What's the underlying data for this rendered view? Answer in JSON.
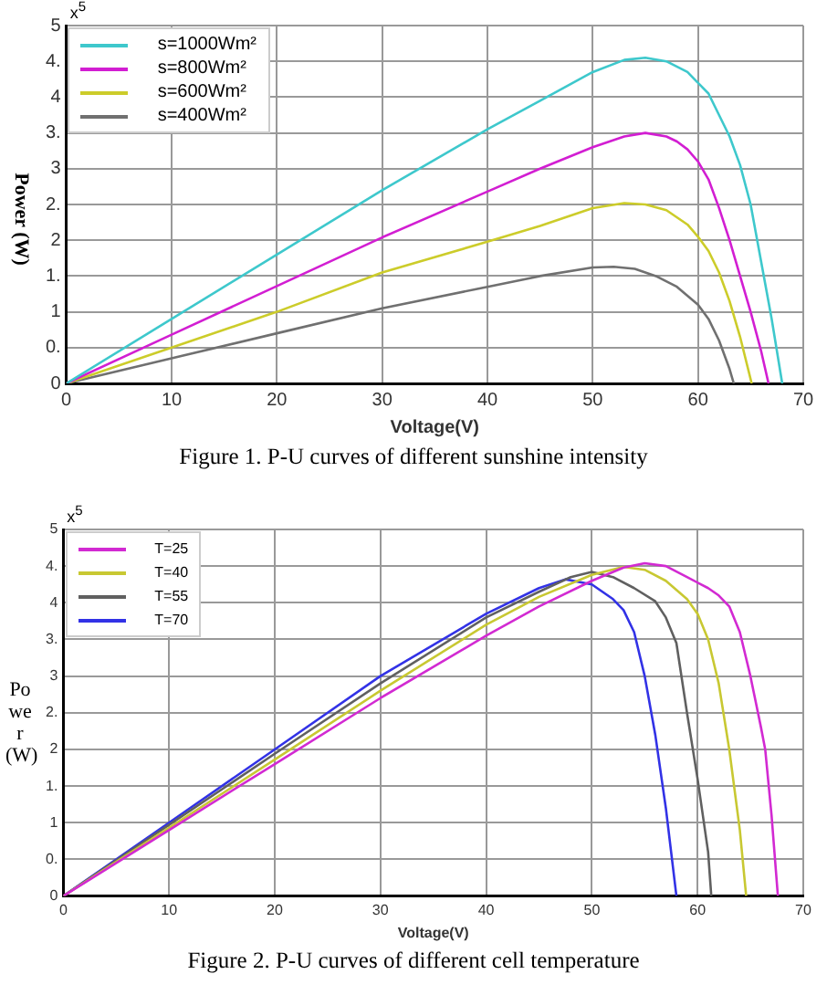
{
  "chart_data": [
    {
      "type": "line",
      "title": "Figure 1. P-U curves of different sunshine intensity",
      "xlabel": "Voltage(V)",
      "ylabel": "Power (W)",
      "annotations": [
        "x$^{5}$"
      ],
      "xlim": [
        0,
        70
      ],
      "xticks": [
        0,
        10,
        20,
        30,
        40,
        50,
        60,
        70
      ],
      "ylim": [
        0,
        5
      ],
      "yticks": [
        {
          "value": 0,
          "label": "0"
        },
        {
          "value": 0.5,
          "label": "0."
        },
        {
          "value": 1,
          "label": "1"
        },
        {
          "value": 1.5,
          "label": "1."
        },
        {
          "value": 2,
          "label": "2"
        },
        {
          "value": 2.5,
          "label": "2."
        },
        {
          "value": 3,
          "label": "3"
        },
        {
          "value": 3.5,
          "label": "3."
        },
        {
          "value": 4,
          "label": "4"
        },
        {
          "value": 4.5,
          "label": "4."
        },
        {
          "value": 5,
          "label": "5"
        }
      ],
      "grid": true,
      "legend": "top left",
      "marker": "none",
      "line_style": "solid",
      "series": [
        {
          "name": "s=1000Wm²",
          "color": "#3ec8cc",
          "x": [
            0,
            10,
            20,
            30,
            40,
            45,
            50,
            53,
            55,
            57,
            59,
            61,
            63,
            64,
            65,
            66,
            67,
            68
          ],
          "values": [
            0,
            0.9,
            1.8,
            2.7,
            3.55,
            3.95,
            4.35,
            4.52,
            4.55,
            4.5,
            4.35,
            4.05,
            3.45,
            3.05,
            2.5,
            1.7,
            0.9,
            0
          ]
        },
        {
          "name": "s=800Wm²",
          "color": "#d21ed2",
          "x": [
            0,
            10,
            20,
            30,
            40,
            45,
            50,
            53,
            55,
            57,
            58,
            59,
            60,
            61,
            62,
            63,
            64,
            65,
            66,
            66.7
          ],
          "values": [
            0,
            0.68,
            1.36,
            2.04,
            2.68,
            3.0,
            3.3,
            3.45,
            3.5,
            3.45,
            3.38,
            3.27,
            3.1,
            2.85,
            2.45,
            2.0,
            1.5,
            1.0,
            0.45,
            0
          ]
        },
        {
          "name": "s=600Wm²",
          "color": "#cccc2a",
          "x": [
            0,
            10,
            20,
            30,
            40,
            45,
            50,
            53,
            55,
            57,
            59,
            60,
            61,
            62,
            63,
            64,
            65.1
          ],
          "values": [
            0,
            0.5,
            1.0,
            1.55,
            1.98,
            2.2,
            2.45,
            2.52,
            2.5,
            2.42,
            2.22,
            2.05,
            1.85,
            1.55,
            1.15,
            0.65,
            0
          ]
        },
        {
          "name": "s=400Wm²",
          "color": "#707070",
          "x": [
            0,
            10,
            20,
            30,
            40,
            45,
            50,
            52,
            54,
            56,
            58,
            60,
            61,
            62,
            63,
            63.4
          ],
          "values": [
            0,
            0.35,
            0.7,
            1.05,
            1.35,
            1.5,
            1.62,
            1.63,
            1.6,
            1.5,
            1.35,
            1.1,
            0.9,
            0.6,
            0.2,
            0
          ]
        }
      ]
    },
    {
      "type": "line",
      "title": "Figure 2. P-U curves of different cell temperature",
      "xlabel": "Voltage(V)",
      "ylabel": "Power(W)",
      "annotations": [
        "x$^{5}$"
      ],
      "xlim": [
        0,
        70
      ],
      "xticks": [
        0,
        10,
        20,
        30,
        40,
        50,
        60,
        70
      ],
      "ylim": [
        0,
        5
      ],
      "yticks": [
        {
          "value": 0,
          "label": "0"
        },
        {
          "value": 0.5,
          "label": "0."
        },
        {
          "value": 1,
          "label": "1"
        },
        {
          "value": 1.5,
          "label": "1."
        },
        {
          "value": 2,
          "label": "2"
        },
        {
          "value": 2.5,
          "label": "2."
        },
        {
          "value": 3,
          "label": "3"
        },
        {
          "value": 3.5,
          "label": "3."
        },
        {
          "value": 4,
          "label": "4"
        },
        {
          "value": 4.5,
          "label": "4."
        },
        {
          "value": 5,
          "label": "5"
        }
      ],
      "grid": true,
      "legend": "top left",
      "marker": "none",
      "line_style": "solid",
      "series": [
        {
          "name": "T=25",
          "color": "#d22ad2",
          "x": [
            0,
            10,
            20,
            30,
            40,
            45,
            50,
            53,
            55,
            57,
            59,
            61,
            62,
            63,
            64,
            65,
            66,
            66.4,
            67,
            67.6
          ],
          "values": [
            0,
            0.9,
            1.8,
            2.7,
            3.55,
            3.95,
            4.3,
            4.48,
            4.54,
            4.5,
            4.35,
            4.2,
            4.1,
            3.95,
            3.6,
            3.0,
            2.3,
            2.0,
            1.1,
            0
          ]
        },
        {
          "name": "T=40",
          "color": "#c8c832",
          "x": [
            0,
            10,
            20,
            30,
            40,
            45,
            50,
            53,
            55,
            57,
            59,
            60,
            61,
            62,
            63,
            64,
            64.6
          ],
          "values": [
            0,
            0.93,
            1.86,
            2.8,
            3.7,
            4.08,
            4.38,
            4.49,
            4.45,
            4.3,
            4.05,
            3.85,
            3.5,
            2.9,
            2.0,
            0.9,
            0
          ]
        },
        {
          "name": "T=55",
          "color": "#606060",
          "x": [
            0,
            10,
            20,
            30,
            40,
            45,
            48,
            50,
            52,
            54,
            56,
            57,
            58,
            59,
            60,
            61,
            61.3
          ],
          "values": [
            0,
            0.97,
            1.94,
            2.9,
            3.8,
            4.15,
            4.35,
            4.42,
            4.35,
            4.2,
            4.02,
            3.8,
            3.45,
            2.5,
            1.6,
            0.6,
            0
          ]
        },
        {
          "name": "T=70",
          "color": "#3232e6",
          "x": [
            0,
            10,
            20,
            30,
            40,
            45,
            47.5,
            50,
            52,
            53,
            54,
            55,
            56,
            57,
            58
          ],
          "values": [
            0,
            1.0,
            2.0,
            3.0,
            3.85,
            4.2,
            4.32,
            4.25,
            4.05,
            3.9,
            3.6,
            3.0,
            2.2,
            1.2,
            0
          ]
        }
      ]
    }
  ]
}
